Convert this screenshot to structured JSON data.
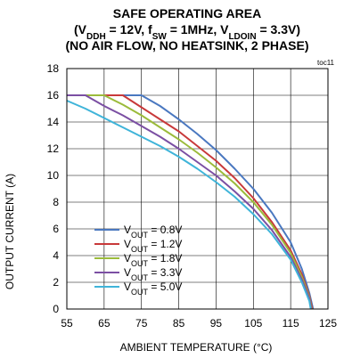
{
  "chart_data": {
    "type": "line",
    "title": {
      "line1": "SAFE OPERATING AREA",
      "line2": [
        {
          "t": "(V"
        },
        {
          "t": "DDH",
          "sub": true
        },
        {
          "t": " = 12V, f"
        },
        {
          "t": "SW",
          "sub": true
        },
        {
          "t": " = 1MHz, V"
        },
        {
          "t": "LDOIN",
          "sub": true
        },
        {
          "t": " = 3.3V)"
        }
      ],
      "line3": "(NO AIR FLOW, NO HEATSINK, 2 PHASE)"
    },
    "figure_tag": "toc11",
    "xlabel": "AMBIENT TEMPERATURE (°C)",
    "ylabel": "OUTPUT CURRENT (A)",
    "xlim": [
      55,
      125
    ],
    "ylim": [
      0,
      18
    ],
    "xticks": [
      55,
      65,
      75,
      85,
      95,
      105,
      115,
      125
    ],
    "yticks": [
      0,
      2,
      4,
      6,
      8,
      10,
      12,
      14,
      16,
      18
    ],
    "grid": true,
    "legend_position": "bottom-left",
    "series": [
      {
        "name_main": "V",
        "name_sub": "OUT",
        "name_rest": " = 0.8V",
        "color": "#4a78c0",
        "points": [
          [
            55,
            16
          ],
          [
            75,
            16
          ],
          [
            80,
            15.2
          ],
          [
            85,
            14.2
          ],
          [
            90,
            13.1
          ],
          [
            95,
            11.9
          ],
          [
            100,
            10.5
          ],
          [
            105,
            9.0
          ],
          [
            110,
            7.2
          ],
          [
            115,
            5.0
          ],
          [
            118,
            3.0
          ],
          [
            120,
            1.2
          ],
          [
            121,
            0
          ]
        ]
      },
      {
        "name_main": "V",
        "name_sub": "OUT",
        "name_rest": " = 1.2V",
        "color": "#c8393a",
        "points": [
          [
            55,
            16
          ],
          [
            70,
            16
          ],
          [
            75,
            15.1
          ],
          [
            80,
            14.2
          ],
          [
            85,
            13.3
          ],
          [
            90,
            12.2
          ],
          [
            95,
            11.1
          ],
          [
            100,
            9.8
          ],
          [
            105,
            8.3
          ],
          [
            110,
            6.5
          ],
          [
            115,
            4.4
          ],
          [
            118,
            2.6
          ],
          [
            120,
            1.0
          ],
          [
            120.8,
            0
          ]
        ]
      },
      {
        "name_main": "V",
        "name_sub": "OUT",
        "name_rest": " = 1.8V",
        "color": "#9bbb3b",
        "points": [
          [
            55,
            16
          ],
          [
            65,
            16
          ],
          [
            70,
            15.3
          ],
          [
            75,
            14.5
          ],
          [
            80,
            13.6
          ],
          [
            85,
            12.7
          ],
          [
            90,
            11.7
          ],
          [
            95,
            10.6
          ],
          [
            100,
            9.4
          ],
          [
            105,
            8.0
          ],
          [
            110,
            6.3
          ],
          [
            115,
            4.2
          ],
          [
            118,
            2.4
          ],
          [
            120,
            0.9
          ],
          [
            120.6,
            0
          ]
        ]
      },
      {
        "name_main": "V",
        "name_sub": "OUT",
        "name_rest": " = 3.3V",
        "color": "#7b4fa3",
        "points": [
          [
            55,
            16
          ],
          [
            60,
            16
          ],
          [
            65,
            15.2
          ],
          [
            70,
            14.5
          ],
          [
            75,
            13.7
          ],
          [
            80,
            12.9
          ],
          [
            85,
            12.0
          ],
          [
            90,
            11.0
          ],
          [
            95,
            10.0
          ],
          [
            100,
            8.8
          ],
          [
            105,
            7.5
          ],
          [
            110,
            5.9
          ],
          [
            115,
            3.9
          ],
          [
            118,
            2.2
          ],
          [
            120,
            0.8
          ],
          [
            120.5,
            0
          ]
        ]
      },
      {
        "name_main": "V",
        "name_sub": "OUT",
        "name_rest": " = 5.0V",
        "color": "#3fb4d9",
        "points": [
          [
            55,
            15.6
          ],
          [
            60,
            15.0
          ],
          [
            65,
            14.3
          ],
          [
            70,
            13.6
          ],
          [
            75,
            12.9
          ],
          [
            80,
            12.2
          ],
          [
            85,
            11.4
          ],
          [
            90,
            10.5
          ],
          [
            95,
            9.5
          ],
          [
            100,
            8.4
          ],
          [
            105,
            7.1
          ],
          [
            110,
            5.6
          ],
          [
            115,
            3.7
          ],
          [
            118,
            2.0
          ],
          [
            120,
            0.6
          ],
          [
            120.4,
            0
          ]
        ]
      }
    ]
  }
}
